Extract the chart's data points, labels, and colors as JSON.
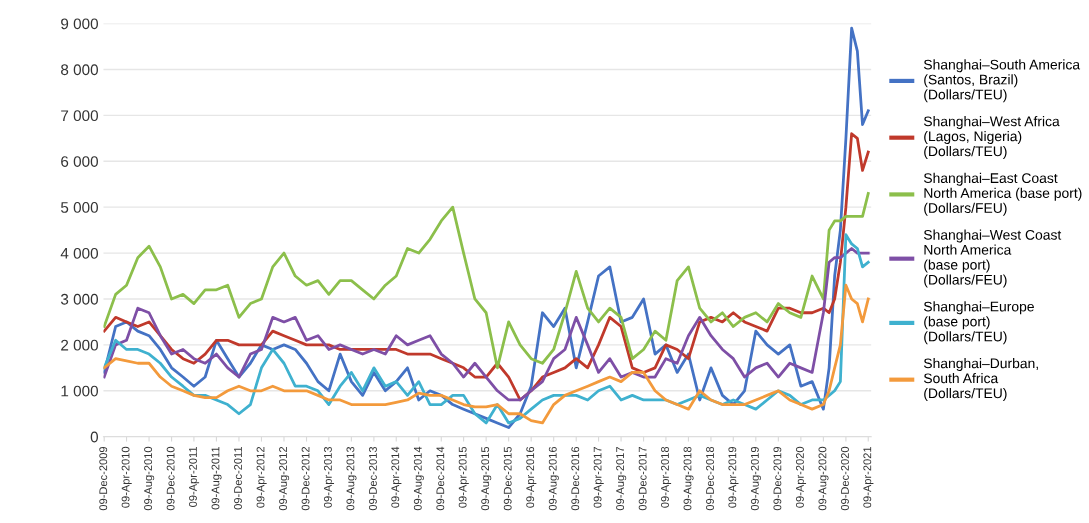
{
  "chart_data": {
    "type": "line",
    "x": [
      "2009-12-09",
      "2010-02-09",
      "2010-04-09",
      "2010-06-09",
      "2010-08-09",
      "2010-10-09",
      "2010-12-09",
      "2011-02-09",
      "2011-04-09",
      "2011-06-09",
      "2011-08-09",
      "2011-10-09",
      "2011-12-09",
      "2012-02-09",
      "2012-04-09",
      "2012-06-09",
      "2012-08-09",
      "2012-10-09",
      "2012-12-09",
      "2013-02-09",
      "2013-04-09",
      "2013-06-09",
      "2013-08-09",
      "2013-10-09",
      "2013-12-09",
      "2014-02-09",
      "2014-04-09",
      "2014-06-09",
      "2014-08-09",
      "2014-10-09",
      "2014-12-09",
      "2015-02-09",
      "2015-04-09",
      "2015-06-09",
      "2015-08-09",
      "2015-10-09",
      "2015-12-09",
      "2016-02-09",
      "2016-04-09",
      "2016-06-09",
      "2016-08-09",
      "2016-10-09",
      "2016-12-09",
      "2017-02-09",
      "2017-04-09",
      "2017-06-09",
      "2017-08-09",
      "2017-10-09",
      "2017-12-09",
      "2018-02-09",
      "2018-04-09",
      "2018-06-09",
      "2018-08-09",
      "2018-10-09",
      "2018-12-09",
      "2019-02-09",
      "2019-04-09",
      "2019-06-09",
      "2019-08-09",
      "2019-10-09",
      "2019-12-09",
      "2020-02-09",
      "2020-04-09",
      "2020-06-09",
      "2020-08-09",
      "2020-09-09",
      "2020-10-09",
      "2020-11-09",
      "2020-12-09",
      "2021-01-09",
      "2021-02-09",
      "2021-03-09",
      "2021-04-09"
    ],
    "series": [
      {
        "name": "Shanghai–South America\n(Santos, Brazil)\n(Dollars/TEU)",
        "color": "#4472c4",
        "values": [
          1400,
          2400,
          2500,
          2300,
          2200,
          1900,
          1500,
          1300,
          1100,
          1300,
          2100,
          1700,
          1300,
          1600,
          2000,
          1900,
          2000,
          1900,
          1600,
          1200,
          1000,
          1800,
          1200,
          900,
          1400,
          1000,
          1200,
          1500,
          800,
          1000,
          900,
          700,
          600,
          500,
          400,
          300,
          200,
          500,
          1100,
          2700,
          2400,
          2800,
          1500,
          2500,
          3500,
          3700,
          2500,
          2600,
          3000,
          1800,
          2000,
          1400,
          1800,
          800,
          1500,
          900,
          700,
          1000,
          2300,
          2000,
          1800,
          2000,
          1100,
          1200,
          600,
          1500,
          3500,
          4500,
          6500,
          8900,
          8400,
          6800,
          7100
        ]
      },
      {
        "name": "Shanghai–West Africa\n(Lagos, Nigeria)\n(Dollars/TEU)",
        "color": "#c0392b",
        "values": [
          2300,
          2600,
          2500,
          2400,
          2500,
          2200,
          1900,
          1700,
          1600,
          1800,
          2100,
          2100,
          2000,
          2000,
          2000,
          2300,
          2200,
          2100,
          2000,
          2000,
          2000,
          1900,
          1900,
          1900,
          1900,
          1900,
          1900,
          1800,
          1800,
          1800,
          1700,
          1600,
          1500,
          1300,
          1300,
          1600,
          1300,
          800,
          1000,
          1300,
          1400,
          1500,
          1700,
          1500,
          2000,
          2600,
          2400,
          1500,
          1400,
          1500,
          2000,
          1900,
          1700,
          2500,
          2600,
          2500,
          2700,
          2500,
          2400,
          2300,
          2800,
          2800,
          2700,
          2700,
          2800,
          2700,
          3000,
          3800,
          5000,
          6600,
          6500,
          5800,
          6200
        ]
      },
      {
        "name": "Shanghai–East Coast\nNorth America (base port)\n(Dollars/FEU)",
        "color": "#8cbf4b",
        "values": [
          2400,
          3100,
          3300,
          3900,
          4150,
          3700,
          3000,
          3100,
          2900,
          3200,
          3200,
          3300,
          2600,
          2900,
          3000,
          3700,
          4000,
          3500,
          3300,
          3400,
          3100,
          3400,
          3400,
          3200,
          3000,
          3300,
          3500,
          4100,
          4000,
          4300,
          4700,
          5000,
          4000,
          3000,
          2700,
          1500,
          2500,
          2000,
          1700,
          1600,
          1900,
          2700,
          3600,
          2800,
          2500,
          2800,
          2600,
          1700,
          1900,
          2300,
          2100,
          3400,
          3700,
          2800,
          2500,
          2700,
          2400,
          2600,
          2700,
          2500,
          2900,
          2700,
          2600,
          3500,
          3000,
          4500,
          4700,
          4700,
          4800,
          4800,
          4800,
          4800,
          5300
        ]
      },
      {
        "name": "Shanghai–West Coast\nNorth America\n(base port)\n(Dollars/FEU)",
        "color": "#7e4fa6",
        "values": [
          1300,
          2000,
          2100,
          2800,
          2700,
          2200,
          1800,
          1900,
          1700,
          1600,
          1800,
          1500,
          1300,
          1800,
          1900,
          2600,
          2500,
          2600,
          2100,
          2200,
          1900,
          2000,
          1900,
          1800,
          1900,
          1800,
          2200,
          2000,
          2100,
          2200,
          1800,
          1600,
          1300,
          1600,
          1300,
          1000,
          800,
          800,
          1000,
          1200,
          1700,
          1900,
          2600,
          2000,
          1400,
          1700,
          1300,
          1400,
          1300,
          1300,
          1700,
          1600,
          2200,
          2600,
          2200,
          1900,
          1700,
          1300,
          1500,
          1600,
          1300,
          1600,
          1500,
          1400,
          2700,
          3800,
          3900,
          3900,
          4000,
          4100,
          4000,
          4000,
          4000
        ]
      },
      {
        "name": "Shanghai–Europe\n(base port)\n(Dollars/TEU)",
        "color": "#3fb1cf",
        "values": [
          1500,
          2100,
          1900,
          1900,
          1800,
          1600,
          1300,
          1100,
          900,
          900,
          800,
          700,
          500,
          700,
          1500,
          1900,
          1600,
          1100,
          1100,
          1000,
          700,
          1100,
          1400,
          1000,
          1500,
          1100,
          1200,
          900,
          1200,
          700,
          700,
          900,
          900,
          500,
          300,
          700,
          300,
          400,
          600,
          800,
          900,
          900,
          900,
          800,
          1000,
          1100,
          800,
          900,
          800,
          800,
          800,
          700,
          800,
          900,
          800,
          700,
          800,
          700,
          600,
          800,
          1000,
          900,
          700,
          800,
          800,
          900,
          1000,
          1200,
          4400,
          4200,
          4100,
          3700,
          3800
        ]
      },
      {
        "name": "Shanghai–Durban,\nSouth Africa\n(Dollars/TEU)",
        "color": "#f39a3c",
        "values": [
          1500,
          1700,
          1650,
          1600,
          1600,
          1300,
          1100,
          1000,
          900,
          850,
          850,
          1000,
          1100,
          1000,
          1000,
          1100,
          1000,
          1000,
          1000,
          900,
          800,
          800,
          700,
          700,
          700,
          700,
          750,
          800,
          950,
          900,
          900,
          800,
          700,
          650,
          650,
          700,
          500,
          500,
          350,
          300,
          700,
          900,
          1000,
          1100,
          1200,
          1300,
          1200,
          1400,
          1400,
          1000,
          800,
          700,
          600,
          1000,
          800,
          700,
          700,
          700,
          800,
          900,
          1000,
          800,
          700,
          600,
          700,
          1000,
          1500,
          2000,
          3300,
          3000,
          2900,
          2500,
          3000
        ]
      }
    ],
    "ylim": [
      0,
      9000
    ],
    "yticks": [
      {
        "value": 0,
        "label": "0"
      },
      {
        "value": 1000,
        "label": "1 000"
      },
      {
        "value": 2000,
        "label": "2 000"
      },
      {
        "value": 3000,
        "label": "3 000"
      },
      {
        "value": 4000,
        "label": "4 000"
      },
      {
        "value": 5000,
        "label": "5 000"
      },
      {
        "value": 6000,
        "label": "6 000"
      },
      {
        "value": 7000,
        "label": "7 000"
      },
      {
        "value": 8000,
        "label": "8 000"
      },
      {
        "value": 9000,
        "label": "9 000"
      }
    ],
    "xlim": [
      "2009-12-05",
      "2021-04-25"
    ],
    "xticks": [
      {
        "value": "2009-12-09",
        "label": "09-Dec-2009"
      },
      {
        "value": "2010-04-09",
        "label": "09-Apr-2010"
      },
      {
        "value": "2010-08-09",
        "label": "09-Aug-2010"
      },
      {
        "value": "2010-12-09",
        "label": "09-Dec-2010"
      },
      {
        "value": "2011-04-09",
        "label": "09-Apr-2011"
      },
      {
        "value": "2011-08-09",
        "label": "09-Aug-2011"
      },
      {
        "value": "2011-12-09",
        "label": "09-Dec-2011"
      },
      {
        "value": "2012-04-09",
        "label": "09-Apr-2012"
      },
      {
        "value": "2012-08-09",
        "label": "09-Aug-2012"
      },
      {
        "value": "2012-12-09",
        "label": "09-Dec-2012"
      },
      {
        "value": "2013-04-09",
        "label": "09-Apr-2013"
      },
      {
        "value": "2013-08-09",
        "label": "09-Aug-2013"
      },
      {
        "value": "2013-12-09",
        "label": "09-Dec-2013"
      },
      {
        "value": "2014-04-09",
        "label": "09-Apr-2014"
      },
      {
        "value": "2014-08-09",
        "label": "09-Aug-2014"
      },
      {
        "value": "2014-12-09",
        "label": "09-Dec-2014"
      },
      {
        "value": "2015-04-09",
        "label": "09-Apr-2015"
      },
      {
        "value": "2015-08-09",
        "label": "09-Aug-2015"
      },
      {
        "value": "2015-12-09",
        "label": "09-Dec-2015"
      },
      {
        "value": "2016-04-09",
        "label": "09-Apr-2016"
      },
      {
        "value": "2016-08-09",
        "label": "09-Aug-2016"
      },
      {
        "value": "2016-12-09",
        "label": "09-Dec-2016"
      },
      {
        "value": "2017-04-09",
        "label": "09-Apr-2017"
      },
      {
        "value": "2017-08-09",
        "label": "09-Aug-2017"
      },
      {
        "value": "2017-12-09",
        "label": "09-Dec-2017"
      },
      {
        "value": "2018-04-09",
        "label": "09-Apr-2018"
      },
      {
        "value": "2018-08-09",
        "label": "09-Aug-2018"
      },
      {
        "value": "2018-12-09",
        "label": "09-Dec-2018"
      },
      {
        "value": "2019-04-09",
        "label": "09-Apr-2019"
      },
      {
        "value": "2019-08-09",
        "label": "09-Aug-2019"
      },
      {
        "value": "2019-12-09",
        "label": "09-Dec-2019"
      },
      {
        "value": "2020-04-09",
        "label": "09-Apr-2020"
      },
      {
        "value": "2020-08-09",
        "label": "09-Aug-2020"
      },
      {
        "value": "2020-12-09",
        "label": "09-Dec-2020"
      },
      {
        "value": "2021-04-09",
        "label": "09-Apr-2021"
      }
    ],
    "grid": "y",
    "legend": "right"
  }
}
